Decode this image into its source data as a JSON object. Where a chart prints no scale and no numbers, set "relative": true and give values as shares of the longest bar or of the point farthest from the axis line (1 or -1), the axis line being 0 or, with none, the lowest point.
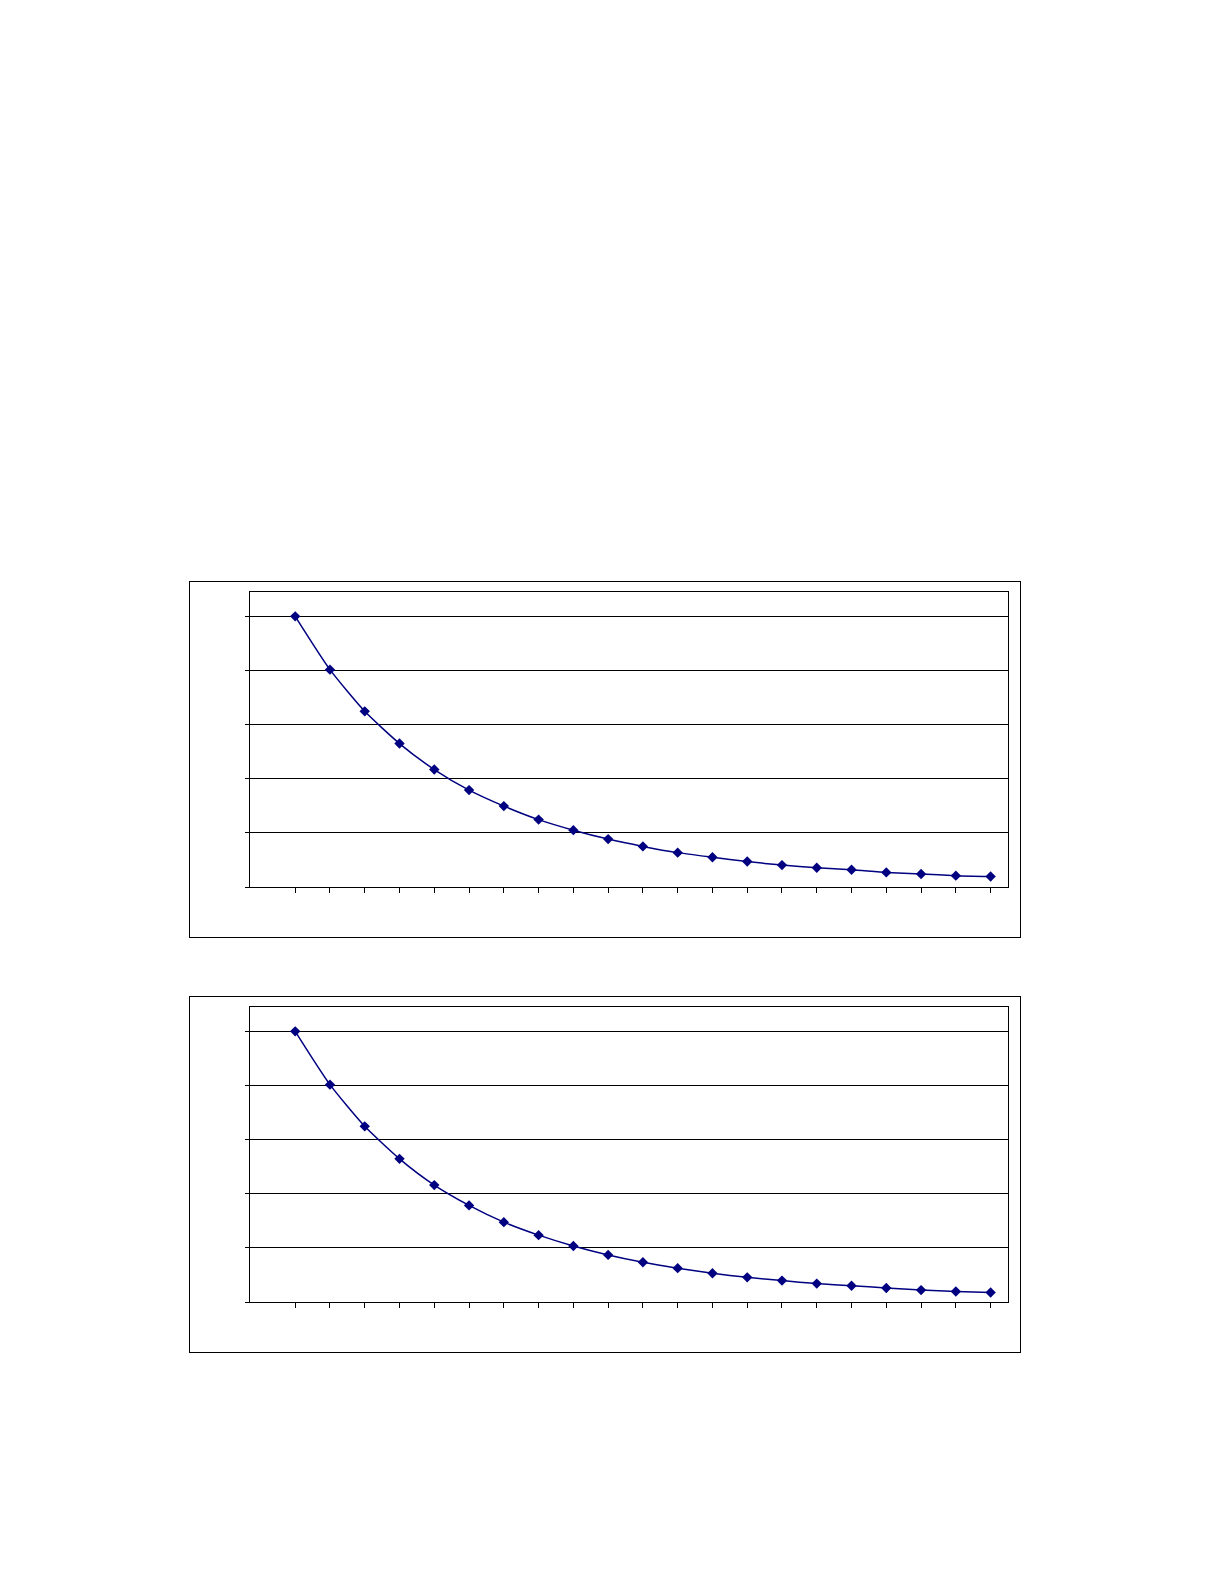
{
  "chart_data": [
    {
      "type": "line",
      "relative": true,
      "categories": [
        null,
        null,
        null,
        null,
        null,
        null,
        null,
        null,
        null,
        null,
        null,
        null,
        null,
        null,
        null,
        null,
        null,
        null,
        null,
        null,
        null
      ],
      "series": [
        {
          "color": "#000080",
          "values": [
            1,
            0.803,
            0.649,
            0.53,
            0.434,
            0.358,
            0.299,
            0.249,
            0.21,
            0.177,
            0.15,
            0.127,
            0.11,
            0.094,
            0.081,
            0.071,
            0.064,
            0.054,
            0.048,
            0.042,
            0.039
          ]
        }
      ],
      "grid": "y",
      "marker": "diamond",
      "line_style": "solid"
    },
    {
      "type": "line",
      "relative": true,
      "categories": [
        null,
        null,
        null,
        null,
        null,
        null,
        null,
        null,
        null,
        null,
        null,
        null,
        null,
        null,
        null,
        null,
        null,
        null,
        null,
        null,
        null
      ],
      "series": [
        {
          "color": "#000080",
          "values": [
            1,
            0.803,
            0.649,
            0.529,
            0.432,
            0.357,
            0.295,
            0.247,
            0.207,
            0.174,
            0.147,
            0.125,
            0.106,
            0.091,
            0.079,
            0.068,
            0.06,
            0.052,
            0.044,
            0.039,
            0.035
          ]
        }
      ],
      "grid": "y",
      "marker": "diamond",
      "line_style": "solid"
    }
  ]
}
